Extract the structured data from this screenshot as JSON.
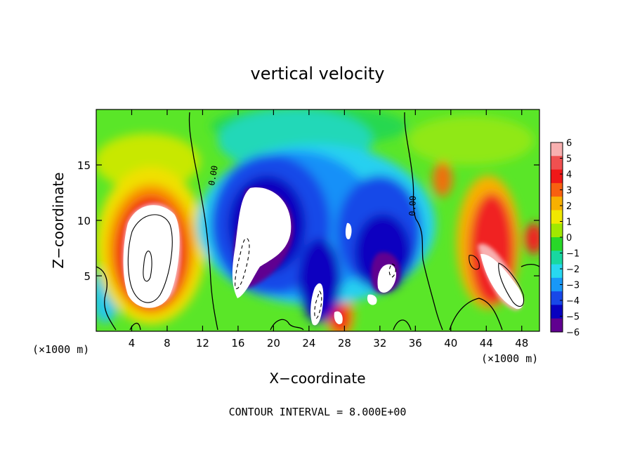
{
  "chart_data": {
    "type": "heatmap",
    "title": "vertical velocity",
    "xlabel": "X−coordinate",
    "ylabel": "Z−coordinate",
    "x_unit_left": "(×1000 m)",
    "x_unit_right": "(×1000 m)",
    "xlim": [
      0,
      50
    ],
    "ylim": [
      0,
      20
    ],
    "x_ticks": [
      4,
      8,
      12,
      16,
      20,
      24,
      28,
      32,
      36,
      40,
      44,
      48
    ],
    "y_ticks": [
      5,
      10,
      15
    ],
    "colorbar": {
      "labels": [
        "6",
        "5",
        "4",
        "3",
        "2",
        "1",
        "0",
        "−1",
        "−2",
        "−3",
        "−4",
        "−5",
        "−6"
      ],
      "values": [
        6,
        5,
        4,
        3,
        2,
        1,
        0,
        -1,
        -2,
        -3,
        -4,
        -5,
        -6
      ],
      "colors": [
        "#f8b0b0",
        "#f05050",
        "#f01818",
        "#f86010",
        "#f8b000",
        "#f0e800",
        "#a0e800",
        "#28d828",
        "#18d8a0",
        "#28d8f0",
        "#1898f8",
        "#1848e8",
        "#0800c0",
        "#600090"
      ]
    },
    "contour_labels": [
      {
        "text": "0.00",
        "x": 13.5,
        "y": 14.0,
        "rotation": -80
      },
      {
        "text": "0.00",
        "x": 36.0,
        "y": 11.3,
        "rotation": -88
      }
    ],
    "features": [
      {
        "kind": "updraft",
        "x": 7.5,
        "y": 7.5,
        "amp": 9
      },
      {
        "kind": "updraft",
        "x": 45.5,
        "y": 6.5,
        "amp": 8
      },
      {
        "kind": "updraft",
        "x": 27.5,
        "y": 1.5,
        "amp": 7
      },
      {
        "kind": "downdraft",
        "x": 19.5,
        "y": 8.5,
        "amp": 9
      },
      {
        "kind": "downdraft",
        "x": 25,
        "y": 5,
        "amp": 8
      },
      {
        "kind": "downdraft",
        "x": 33,
        "y": 5.5,
        "amp": 7
      }
    ],
    "footnote": "CONTOUR INTERVAL = 8.000E+00"
  }
}
